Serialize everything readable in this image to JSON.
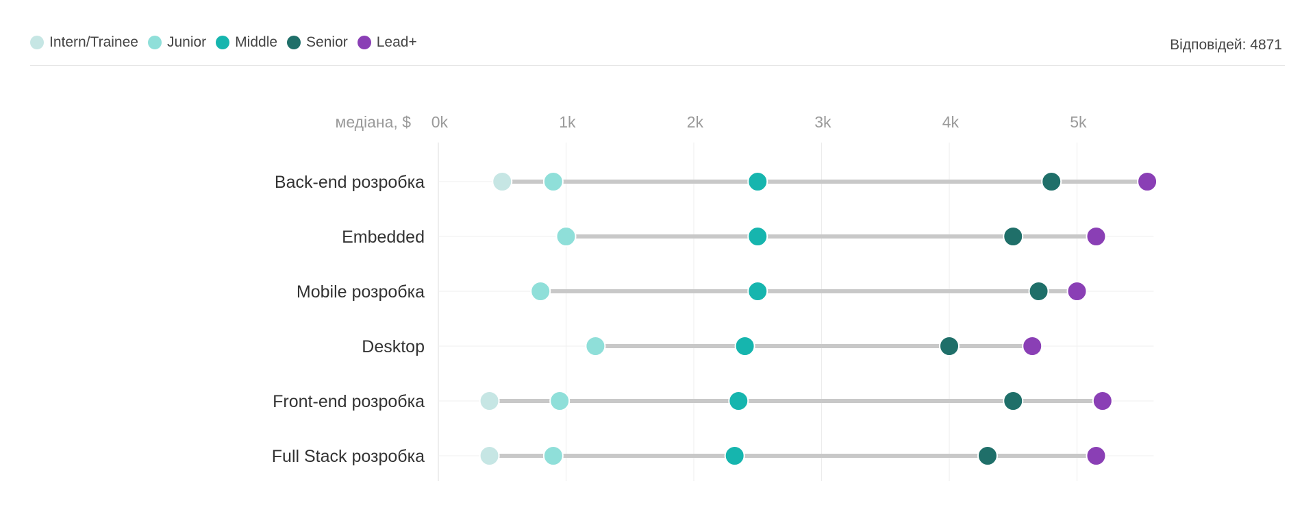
{
  "legend": [
    {
      "label": "Intern/Trainee",
      "color": "#c6e6e4"
    },
    {
      "label": "Junior",
      "color": "#8fdfd9"
    },
    {
      "label": "Middle",
      "color": "#16b5ae"
    },
    {
      "label": "Senior",
      "color": "#1f6f69"
    },
    {
      "label": "Lead+",
      "color": "#8a3fb5"
    }
  ],
  "responses_text": "Відповідей: 4871",
  "chart_data": {
    "type": "dot-range",
    "axis_prefix": "медіана, $",
    "x_ticks": [
      "0k",
      "1k",
      "2k",
      "3k",
      "4k",
      "5k"
    ],
    "xlim": [
      0,
      5600
    ],
    "grid": true,
    "legend_position": "top-left",
    "categories": [
      "Back-end розробка",
      "Embedded",
      "Mobile розробка",
      "Desktop",
      "Front-end розробка",
      "Full Stack розробка"
    ],
    "series": [
      {
        "name": "Intern/Trainee",
        "color": "#c6e6e4",
        "values": [
          500,
          null,
          null,
          null,
          400,
          400
        ]
      },
      {
        "name": "Junior",
        "color": "#8fdfd9",
        "values": [
          900,
          1000,
          800,
          1230,
          950,
          900
        ]
      },
      {
        "name": "Middle",
        "color": "#16b5ae",
        "values": [
          2500,
          2500,
          2500,
          2400,
          2350,
          2320
        ]
      },
      {
        "name": "Senior",
        "color": "#1f6f69",
        "values": [
          4800,
          4500,
          4700,
          4000,
          4500,
          4300
        ]
      },
      {
        "name": "Lead+",
        "color": "#8a3fb5",
        "values": [
          5550,
          5150,
          5000,
          4650,
          5200,
          5150
        ]
      }
    ]
  }
}
